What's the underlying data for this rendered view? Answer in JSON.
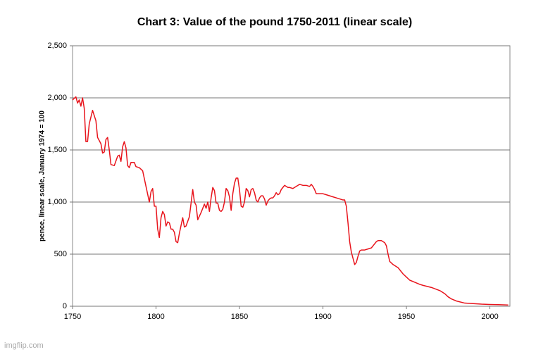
{
  "chart_data": {
    "type": "line",
    "title": "Chart 3: Value of the pound 1750-2011 (linear scale)",
    "y_label": "pence, linear scale, January 1974 = 100",
    "watermark": "imgflip.com",
    "xlim": [
      1750,
      2012
    ],
    "xticks": [
      1750,
      1800,
      1850,
      1900,
      1950,
      2000
    ],
    "ylim": [
      0,
      2500
    ],
    "yticks": [
      0,
      {
        "value": 500,
        "label": "500"
      },
      {
        "value": 1000,
        "label": "1,000"
      },
      {
        "value": 1500,
        "label": "1,500"
      },
      {
        "value": 2000,
        "label": "2,000"
      },
      {
        "value": 2500,
        "label": "2,500"
      }
    ],
    "grid": true,
    "series": [
      {
        "name": "Value of the pound",
        "color": "#e8141c",
        "x": [
          1750,
          1752,
          1753,
          1754,
          1755,
          1756,
          1757,
          1758,
          1759,
          1760,
          1762,
          1764,
          1765,
          1767,
          1768,
          1769,
          1770,
          1771,
          1772,
          1773,
          1775,
          1777,
          1778,
          1779,
          1780,
          1781,
          1782,
          1783,
          1784,
          1785,
          1787,
          1788,
          1790,
          1792,
          1794,
          1796,
          1797,
          1798,
          1799,
          1800,
          1801,
          1802,
          1803,
          1804,
          1805,
          1806,
          1807,
          1808,
          1809,
          1810,
          1811,
          1812,
          1813,
          1814,
          1816,
          1817,
          1818,
          1820,
          1822,
          1823,
          1824,
          1825,
          1827,
          1829,
          1830,
          1831,
          1832,
          1833,
          1834,
          1835,
          1836,
          1837,
          1838,
          1839,
          1840,
          1841,
          1842,
          1843,
          1844,
          1845,
          1846,
          1847,
          1848,
          1849,
          1850,
          1851,
          1852,
          1853,
          1854,
          1855,
          1856,
          1857,
          1858,
          1859,
          1860,
          1861,
          1862,
          1863,
          1864,
          1865,
          1866,
          1867,
          1868,
          1869,
          1870,
          1871,
          1872,
          1873,
          1874,
          1875,
          1876,
          1877,
          1878,
          1879,
          1880,
          1882,
          1884,
          1886,
          1888,
          1890,
          1892,
          1893,
          1894,
          1895,
          1896,
          1898,
          1900,
          1902,
          1904,
          1906,
          1908,
          1910,
          1912,
          1913,
          1914,
          1915,
          1916,
          1917,
          1918,
          1919,
          1920,
          1921,
          1922,
          1923,
          1925,
          1927,
          1929,
          1930,
          1932,
          1933,
          1935,
          1937,
          1938,
          1939,
          1940,
          1942,
          1945,
          1948,
          1950,
          1952,
          1955,
          1958,
          1960,
          1965,
          1970,
          1973,
          1975,
          1977,
          1980,
          1985,
          1990,
          1995,
          2000,
          2005,
          2011
        ],
        "values": [
          1980,
          2010,
          1950,
          1980,
          1920,
          2000,
          1900,
          1580,
          1580,
          1750,
          1880,
          1780,
          1620,
          1560,
          1470,
          1480,
          1600,
          1620,
          1500,
          1360,
          1350,
          1440,
          1450,
          1390,
          1530,
          1580,
          1520,
          1350,
          1330,
          1380,
          1380,
          1340,
          1330,
          1300,
          1150,
          1000,
          1100,
          1130,
          960,
          960,
          740,
          660,
          850,
          910,
          880,
          770,
          810,
          800,
          740,
          740,
          710,
          620,
          610,
          700,
          850,
          760,
          770,
          860,
          1120,
          1000,
          970,
          830,
          900,
          980,
          940,
          1000,
          910,
          1040,
          1140,
          1110,
          990,
          990,
          920,
          910,
          930,
          1000,
          1130,
          1110,
          1050,
          920,
          1080,
          1180,
          1230,
          1230,
          1120,
          960,
          950,
          1000,
          1130,
          1110,
          1050,
          1120,
          1130,
          1090,
          1020,
          1000,
          1040,
          1060,
          1060,
          1030,
          970,
          1010,
          1030,
          1040,
          1040,
          1060,
          1090,
          1070,
          1080,
          1120,
          1140,
          1160,
          1150,
          1140,
          1140,
          1130,
          1150,
          1170,
          1160,
          1160,
          1150,
          1170,
          1150,
          1120,
          1080,
          1080,
          1080,
          1070,
          1060,
          1050,
          1040,
          1030,
          1020,
          1020,
          960,
          800,
          620,
          520,
          460,
          400,
          420,
          480,
          530,
          540,
          540,
          550,
          560,
          580,
          620,
          630,
          630,
          610,
          580,
          500,
          430,
          400,
          370,
          310,
          280,
          250,
          230,
          210,
          200,
          180,
          150,
          120,
          90,
          70,
          50,
          30,
          25,
          20,
          17,
          15,
          12
        ]
      }
    ]
  }
}
